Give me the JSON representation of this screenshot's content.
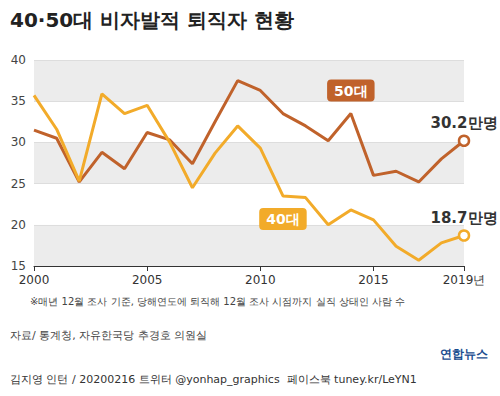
{
  "chart_data": {
    "type": "line",
    "title": "40·50대 비자발적 퇴직자 현황",
    "x": [
      2000,
      2001,
      2002,
      2003,
      2004,
      2005,
      2006,
      2007,
      2008,
      2009,
      2010,
      2011,
      2012,
      2013,
      2014,
      2015,
      2016,
      2017,
      2018,
      2019
    ],
    "series": [
      {
        "name": "50대",
        "color": "#c0622b",
        "values": [
          31.5,
          30.5,
          25.2,
          28.8,
          26.8,
          31.2,
          30.3,
          27.4,
          32.5,
          37.5,
          36.3,
          33.5,
          32.0,
          30.2,
          33.5,
          26.0,
          26.5,
          25.2,
          28.0,
          30.2
        ]
      },
      {
        "name": "40대",
        "color": "#f2ab2a",
        "values": [
          35.7,
          31.6,
          25.3,
          35.9,
          33.5,
          34.5,
          30.0,
          24.5,
          28.7,
          32.0,
          29.3,
          23.5,
          23.3,
          20.0,
          21.8,
          20.6,
          17.4,
          15.7,
          17.8,
          18.7
        ]
      }
    ],
    "annotations": [
      {
        "text": "30.2만명",
        "series": "50대",
        "x": 2019,
        "y": 30.2
      },
      {
        "text": "18.7만명",
        "series": "40대",
        "x": 2019,
        "y": 18.7
      }
    ],
    "xlim": [
      2000,
      2019
    ],
    "xticks": [
      2000,
      2005,
      2010,
      2015,
      {
        "value": 2019,
        "label": "2019년"
      }
    ],
    "ylim": [
      15,
      40
    ],
    "yticks": [
      15,
      20,
      25,
      30,
      35,
      40
    ],
    "grid": true,
    "note": "※매년 12월 조사 기준, 당해연도에 퇴직해 12월 조사 시점까지 실직 상태인 사람 수",
    "source": "자료/ 통계청, 자유한국당 추경호 의원실",
    "credit": "김지영 인턴 / 20200216 트위터 @yonhap_graphics  페이스북 tuney.kr/LeYN1",
    "logo": "연합뉴스"
  }
}
